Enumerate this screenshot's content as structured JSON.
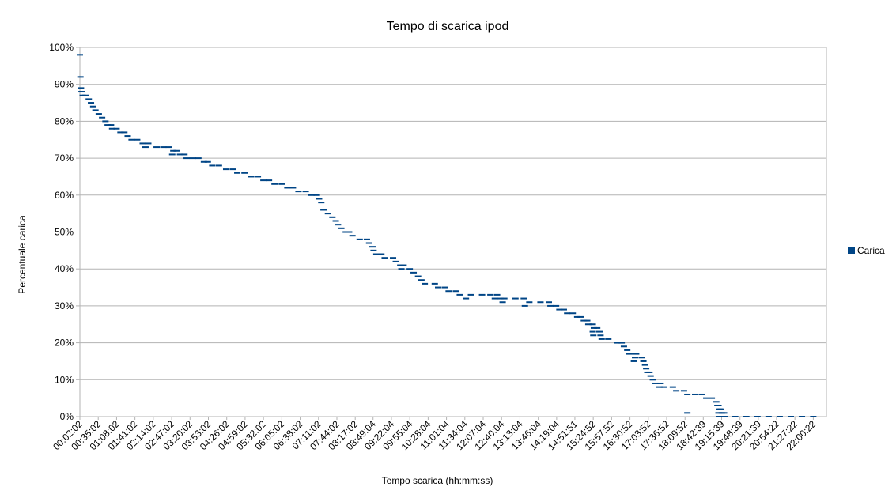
{
  "chart_data": {
    "type": "scatter",
    "title": "Tempo di scarica ipod",
    "xlabel": "Tempo scarica (hh:mm:ss)",
    "ylabel": "Percentuale carica",
    "ylim": [
      0,
      1
    ],
    "y_ticks": [
      "0%",
      "10%",
      "20%",
      "30%",
      "40%",
      "50%",
      "60%",
      "70%",
      "80%",
      "90%",
      "100%"
    ],
    "x_ticks": [
      "00:02:02",
      "00:35:02",
      "01:08:02",
      "01:41:02",
      "02:14:02",
      "02:47:02",
      "03:20:02",
      "03:53:02",
      "04:26:02",
      "04:59:02",
      "05:32:02",
      "06:05:02",
      "06:38:02",
      "07:11:02",
      "07:44:02",
      "08:17:02",
      "08:49:04",
      "09:22:04",
      "09:55:04",
      "10:28:04",
      "11:01:04",
      "11:34:04",
      "12:07:04",
      "12:40:04",
      "13:13:04",
      "13:46:04",
      "14:19:04",
      "14:51:51",
      "15:24:52",
      "15:57:52",
      "16:30:52",
      "17:03:52",
      "17:36:52",
      "18:09:52",
      "18:42:39",
      "19:15:39",
      "19:48:39",
      "20:21:39",
      "20:54:22",
      "21:27:22",
      "22:00:22"
    ],
    "xlim": [
      "00:02:02",
      "22:24:00"
    ],
    "grid": true,
    "legend": {
      "placement": "right"
    },
    "series": [
      {
        "name": "Carica",
        "color": "#004586",
        "points": [
          [
            "00:02:02",
            0.98
          ],
          [
            "00:03:00",
            0.92
          ],
          [
            "00:04:00",
            0.89
          ],
          [
            "00:05:00",
            0.88
          ],
          [
            "00:07:00",
            0.87
          ],
          [
            "00:12:00",
            0.87
          ],
          [
            "00:18:00",
            0.86
          ],
          [
            "00:22:00",
            0.85
          ],
          [
            "00:26:00",
            0.84
          ],
          [
            "00:30:00",
            0.83
          ],
          [
            "00:36:00",
            0.82
          ],
          [
            "00:42:00",
            0.81
          ],
          [
            "00:48:00",
            0.8
          ],
          [
            "00:52:00",
            0.79
          ],
          [
            "00:58:00",
            0.79
          ],
          [
            "01:00:00",
            0.78
          ],
          [
            "01:08:00",
            0.78
          ],
          [
            "01:15:00",
            0.77
          ],
          [
            "01:22:00",
            0.77
          ],
          [
            "01:28:00",
            0.76
          ],
          [
            "01:35:00",
            0.75
          ],
          [
            "01:45:00",
            0.75
          ],
          [
            "01:55:00",
            0.74
          ],
          [
            "02:05:00",
            0.74
          ],
          [
            "02:00:00",
            0.73
          ],
          [
            "02:20:00",
            0.73
          ],
          [
            "02:32:00",
            0.73
          ],
          [
            "02:42:00",
            0.73
          ],
          [
            "02:50:00",
            0.72
          ],
          [
            "02:56:00",
            0.72
          ],
          [
            "02:48:00",
            0.71
          ],
          [
            "03:02:00",
            0.71
          ],
          [
            "03:10:00",
            0.71
          ],
          [
            "03:14:00",
            0.7
          ],
          [
            "03:25:00",
            0.7
          ],
          [
            "03:35:00",
            0.7
          ],
          [
            "03:45:00",
            0.69
          ],
          [
            "03:52:00",
            0.69
          ],
          [
            "04:00:00",
            0.68
          ],
          [
            "04:12:00",
            0.68
          ],
          [
            "04:25:00",
            0.67
          ],
          [
            "04:37:00",
            0.67
          ],
          [
            "04:45:00",
            0.66
          ],
          [
            "04:58:00",
            0.66
          ],
          [
            "05:10:00",
            0.65
          ],
          [
            "05:22:00",
            0.65
          ],
          [
            "05:32:00",
            0.64
          ],
          [
            "05:42:00",
            0.64
          ],
          [
            "05:52:00",
            0.63
          ],
          [
            "06:05:00",
            0.63
          ],
          [
            "06:15:00",
            0.62
          ],
          [
            "06:25:00",
            0.62
          ],
          [
            "06:35:00",
            0.61
          ],
          [
            "06:48:00",
            0.61
          ],
          [
            "06:58:00",
            0.6
          ],
          [
            "07:08:00",
            0.6
          ],
          [
            "07:12:00",
            0.59
          ],
          [
            "07:16:00",
            0.58
          ],
          [
            "07:20:00",
            0.56
          ],
          [
            "07:28:00",
            0.55
          ],
          [
            "07:36:00",
            0.54
          ],
          [
            "07:42:00",
            0.53
          ],
          [
            "07:46:00",
            0.52
          ],
          [
            "07:52:00",
            0.51
          ],
          [
            "08:00:00",
            0.5
          ],
          [
            "08:06:00",
            0.5
          ],
          [
            "08:12:00",
            0.49
          ],
          [
            "08:25:00",
            0.48
          ],
          [
            "08:38:00",
            0.48
          ],
          [
            "08:42:00",
            0.47
          ],
          [
            "08:48:00",
            0.46
          ],
          [
            "08:50:00",
            0.45
          ],
          [
            "08:55:00",
            0.44
          ],
          [
            "09:04:00",
            0.44
          ],
          [
            "09:10:00",
            0.43
          ],
          [
            "09:25:00",
            0.43
          ],
          [
            "09:30:00",
            0.42
          ],
          [
            "09:38:00",
            0.41
          ],
          [
            "09:44:00",
            0.41
          ],
          [
            "09:40:00",
            0.4
          ],
          [
            "09:55:00",
            0.4
          ],
          [
            "10:02:00",
            0.39
          ],
          [
            "10:10:00",
            0.38
          ],
          [
            "10:16:00",
            0.37
          ],
          [
            "10:22:00",
            0.36
          ],
          [
            "10:40:00",
            0.36
          ],
          [
            "10:46:00",
            0.35
          ],
          [
            "10:58:00",
            0.35
          ],
          [
            "11:05:00",
            0.34
          ],
          [
            "11:18:00",
            0.34
          ],
          [
            "11:25:00",
            0.33
          ],
          [
            "11:45:00",
            0.33
          ],
          [
            "12:05:00",
            0.33
          ],
          [
            "12:20:00",
            0.33
          ],
          [
            "12:32:00",
            0.33
          ],
          [
            "11:36:00",
            0.32
          ],
          [
            "12:28:00",
            0.32
          ],
          [
            "12:38:00",
            0.32
          ],
          [
            "12:45:00",
            0.32
          ],
          [
            "13:05:00",
            0.32
          ],
          [
            "13:20:00",
            0.32
          ],
          [
            "12:42:00",
            0.31
          ],
          [
            "13:30:00",
            0.31
          ],
          [
            "13:50:00",
            0.31
          ],
          [
            "14:05:00",
            0.31
          ],
          [
            "13:22:00",
            0.3
          ],
          [
            "14:08:00",
            0.3
          ],
          [
            "14:18:00",
            0.3
          ],
          [
            "14:24:00",
            0.29
          ],
          [
            "14:32:00",
            0.29
          ],
          [
            "14:38:00",
            0.28
          ],
          [
            "14:48:00",
            0.28
          ],
          [
            "14:56:00",
            0.27
          ],
          [
            "15:02:00",
            0.27
          ],
          [
            "15:08:00",
            0.26
          ],
          [
            "15:14:00",
            0.26
          ],
          [
            "15:16:00",
            0.25
          ],
          [
            "15:24:00",
            0.25
          ],
          [
            "15:26:00",
            0.24
          ],
          [
            "15:32:00",
            0.24
          ],
          [
            "15:24:00",
            0.23
          ],
          [
            "15:36:00",
            0.23
          ],
          [
            "15:25:00",
            0.22
          ],
          [
            "15:38:00",
            0.22
          ],
          [
            "15:40:00",
            0.21
          ],
          [
            "15:52:00",
            0.21
          ],
          [
            "16:08:00",
            0.2
          ],
          [
            "16:16:00",
            0.2
          ],
          [
            "16:20:00",
            0.19
          ],
          [
            "16:26:00",
            0.18
          ],
          [
            "16:30:00",
            0.17
          ],
          [
            "16:42:00",
            0.17
          ],
          [
            "16:40:00",
            0.16
          ],
          [
            "16:52:00",
            0.16
          ],
          [
            "16:38:00",
            0.15
          ],
          [
            "16:55:00",
            0.15
          ],
          [
            "16:58:00",
            0.14
          ],
          [
            "17:00:00",
            0.13
          ],
          [
            "17:02:00",
            0.12
          ],
          [
            "17:06:00",
            0.12
          ],
          [
            "17:08:00",
            0.11
          ],
          [
            "17:12:00",
            0.1
          ],
          [
            "17:16:00",
            0.09
          ],
          [
            "17:26:00",
            0.09
          ],
          [
            "17:24:00",
            0.08
          ],
          [
            "17:32:00",
            0.08
          ],
          [
            "17:48:00",
            0.08
          ],
          [
            "17:54:00",
            0.07
          ],
          [
            "18:08:00",
            0.07
          ],
          [
            "18:14:00",
            0.06
          ],
          [
            "18:28:00",
            0.06
          ],
          [
            "18:40:00",
            0.06
          ],
          [
            "18:48:00",
            0.05
          ],
          [
            "18:58:00",
            0.05
          ],
          [
            "19:06:00",
            0.04
          ],
          [
            "19:08:00",
            0.03
          ],
          [
            "19:10:00",
            0.03
          ],
          [
            "19:12:00",
            0.02
          ],
          [
            "19:14:00",
            0.02
          ],
          [
            "19:16:00",
            0.01
          ],
          [
            "19:20:00",
            0.01
          ],
          [
            "18:14:00",
            0.01
          ],
          [
            "19:10:00",
            0.01
          ],
          [
            "19:12:00",
            0.0
          ],
          [
            "19:22:00",
            0.0
          ],
          [
            "19:40:00",
            0.0
          ],
          [
            "20:00:00",
            0.0
          ],
          [
            "20:20:00",
            0.0
          ],
          [
            "20:40:00",
            0.0
          ],
          [
            "21:00:00",
            0.0
          ],
          [
            "21:20:00",
            0.0
          ],
          [
            "21:40:00",
            0.0
          ],
          [
            "22:00:22",
            0.0
          ]
        ]
      }
    ]
  }
}
